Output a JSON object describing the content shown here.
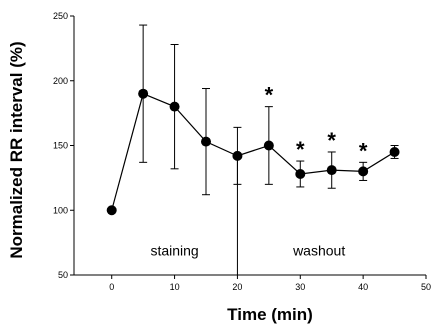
{
  "chart_data": {
    "type": "scatter",
    "xlabel": "Time (min)",
    "ylabel": "Normalized RR interval (%)",
    "xlim": [
      -6,
      50
    ],
    "ylim": [
      50,
      250
    ],
    "xticks": [
      0,
      10,
      20,
      30,
      40,
      50
    ],
    "yticks": [
      50,
      100,
      150,
      200,
      250
    ],
    "x": [
      0,
      5,
      10,
      15,
      20,
      25,
      30,
      35,
      40,
      45
    ],
    "y": [
      100,
      190,
      180,
      153,
      142,
      150,
      128,
      131,
      130,
      145
    ],
    "err": [
      0,
      53,
      48,
      41,
      22,
      30,
      10,
      14,
      7,
      5
    ],
    "significant": [
      false,
      false,
      false,
      false,
      false,
      true,
      true,
      true,
      true,
      false
    ],
    "star_label": "*",
    "divider_x": 20,
    "annotations": [
      {
        "text": "staining",
        "x": 10,
        "y": 65
      },
      {
        "text": "washout",
        "x": 33,
        "y": 65
      }
    ],
    "line": true,
    "grid": false,
    "tick_label_format": "50 overlaps the plot edge; shown as '5' clipped"
  }
}
